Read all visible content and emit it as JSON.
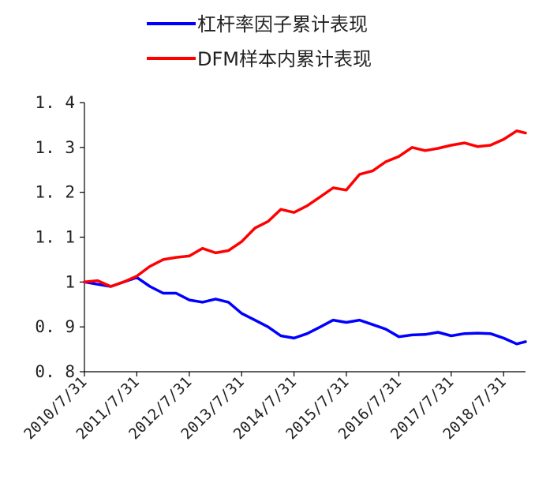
{
  "chart_data": {
    "type": "line",
    "title": "",
    "xlabel": "",
    "ylabel": "",
    "ylim": [
      0.8,
      1.4
    ],
    "y_ticks": [
      "0.8",
      "0.9",
      "1",
      "1.1",
      "1.2",
      "1.3",
      "1.4"
    ],
    "y_tick_display": [
      "0. 8",
      "0. 9",
      "1",
      "1. 1",
      "1. 2",
      "1. 3",
      "1. 4"
    ],
    "x_ticks": [
      "2010/7/31",
      "2011/7/31",
      "2012/7/31",
      "2013/7/31",
      "2014/7/31",
      "2015/7/31",
      "2016/7/31",
      "2017/7/31",
      "2018/7/31"
    ],
    "xlim": [
      "2010-07-31",
      "2018-12-31"
    ],
    "grid": false,
    "legend_position": "top-center",
    "series": [
      {
        "name": "杠杆率因子累计表现",
        "color": "#0000ff",
        "x": [
          "2010-07-31",
          "2010-10-31",
          "2011-01-31",
          "2011-04-30",
          "2011-07-31",
          "2011-10-31",
          "2012-01-31",
          "2012-04-30",
          "2012-07-31",
          "2012-10-31",
          "2013-01-31",
          "2013-04-30",
          "2013-07-31",
          "2013-10-31",
          "2014-01-31",
          "2014-04-30",
          "2014-07-31",
          "2014-10-31",
          "2015-01-31",
          "2015-04-30",
          "2015-07-31",
          "2015-10-31",
          "2016-01-31",
          "2016-04-30",
          "2016-07-31",
          "2016-10-31",
          "2017-01-31",
          "2017-04-30",
          "2017-07-31",
          "2017-10-31",
          "2018-01-31",
          "2018-04-30",
          "2018-07-31",
          "2018-10-31",
          "2018-12-31"
        ],
        "values": [
          1.0,
          0.995,
          0.99,
          1.0,
          1.01,
          0.99,
          0.975,
          0.975,
          0.96,
          0.955,
          0.962,
          0.955,
          0.93,
          0.915,
          0.9,
          0.88,
          0.875,
          0.885,
          0.9,
          0.915,
          0.91,
          0.915,
          0.905,
          0.895,
          0.878,
          0.882,
          0.883,
          0.888,
          0.88,
          0.885,
          0.886,
          0.885,
          0.875,
          0.862,
          0.867
        ]
      },
      {
        "name": "DFM样本内累计表现",
        "color": "#ff0000",
        "x": [
          "2010-07-31",
          "2010-10-31",
          "2011-01-31",
          "2011-04-30",
          "2011-07-31",
          "2011-10-31",
          "2012-01-31",
          "2012-04-30",
          "2012-07-31",
          "2012-10-31",
          "2013-01-31",
          "2013-04-30",
          "2013-07-31",
          "2013-10-31",
          "2014-01-31",
          "2014-04-30",
          "2014-07-31",
          "2014-10-31",
          "2015-01-31",
          "2015-04-30",
          "2015-07-31",
          "2015-10-31",
          "2016-01-31",
          "2016-04-30",
          "2016-07-31",
          "2016-10-31",
          "2017-01-31",
          "2017-04-30",
          "2017-07-31",
          "2017-10-31",
          "2018-01-31",
          "2018-04-30",
          "2018-07-31",
          "2018-10-31",
          "2018-12-31"
        ],
        "values": [
          1.0,
          1.003,
          0.99,
          1.0,
          1.013,
          1.035,
          1.05,
          1.055,
          1.058,
          1.075,
          1.065,
          1.07,
          1.09,
          1.12,
          1.135,
          1.162,
          1.155,
          1.17,
          1.19,
          1.21,
          1.205,
          1.24,
          1.248,
          1.268,
          1.28,
          1.3,
          1.293,
          1.298,
          1.305,
          1.31,
          1.302,
          1.305,
          1.318,
          1.337,
          1.332
        ]
      }
    ]
  }
}
